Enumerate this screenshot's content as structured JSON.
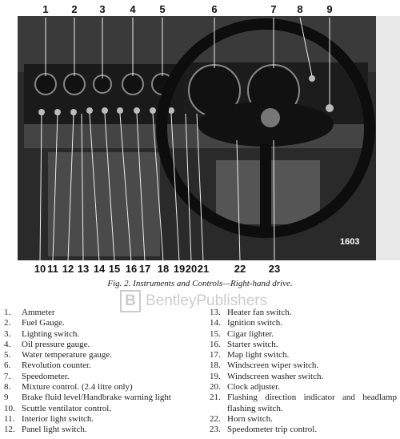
{
  "callouts_top": [
    "1",
    "2",
    "3",
    "4",
    "5",
    "6",
    "7",
    "8",
    "9"
  ],
  "callouts_bottom": [
    "10",
    "11",
    "12",
    "13",
    "14",
    "15",
    "16",
    "17",
    "18",
    "19",
    "20",
    "21",
    "22",
    "23"
  ],
  "photo_number": "1603",
  "caption": "Fig. 2.  Instruments and Controls—Right-hand drive.",
  "watermark": {
    "logo": "B",
    "name": "BentleyPublishers"
  },
  "legend": [
    {
      "number": "1.",
      "text": "Ammeter"
    },
    {
      "number": "2.",
      "text": "Fuel Gauge."
    },
    {
      "number": "3.",
      "text": "Lighting switch."
    },
    {
      "number": "4.",
      "text": "Oil pressure gauge."
    },
    {
      "number": "5.",
      "text": "Water temperature gauge."
    },
    {
      "number": "6.",
      "text": "Revolution counter."
    },
    {
      "number": "7.",
      "text": "Speedometer."
    },
    {
      "number": "8.",
      "text": "Mixture control. (2.4 litre only)"
    },
    {
      "number": "9",
      "text": "Brake fluid level/Handbrake warning light"
    },
    {
      "number": "10.",
      "text": "Scuttle ventilator control."
    },
    {
      "number": "11.",
      "text": "Interior light switch."
    },
    {
      "number": "12.",
      "text": "Panel light switch."
    },
    {
      "number": "13.",
      "text": "Heater fan switch."
    },
    {
      "number": "14.",
      "text": "Ignition switch."
    },
    {
      "number": "15.",
      "text": "Cigar lighter."
    },
    {
      "number": "16.",
      "text": "Starter switch."
    },
    {
      "number": "17.",
      "text": "Map light switch."
    },
    {
      "number": "18.",
      "text": "Windscreen wiper switch."
    },
    {
      "number": "19.",
      "text": "Windscreen washer switch."
    },
    {
      "number": "20.",
      "text": "Clock adjuster."
    },
    {
      "number": "21.",
      "text": "Flashing direction indicator and headlamp flashing switch."
    },
    {
      "number": "22.",
      "text": "Horn switch."
    },
    {
      "number": "23.",
      "text": "Speedometer trip control."
    }
  ]
}
